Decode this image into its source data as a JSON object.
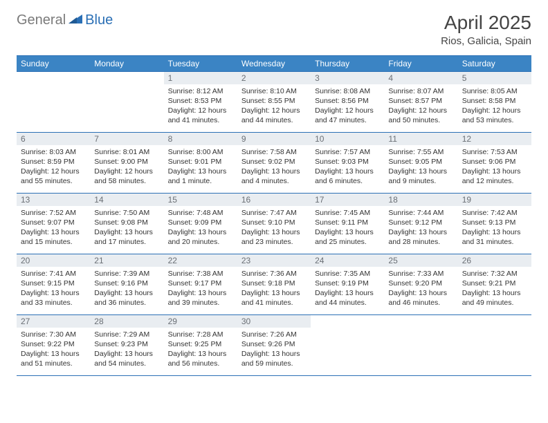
{
  "logo": {
    "gray": "General",
    "blue": "Blue"
  },
  "title": "April 2025",
  "subtitle": "Rios, Galicia, Spain",
  "colors": {
    "header_bg": "#3b84c4",
    "border": "#2a6fb5",
    "daynum_bg": "#e9edf1",
    "daynum_color": "#6a6f75",
    "text": "#333333",
    "logo_gray": "#7a7a7a",
    "logo_blue": "#2a6fb5"
  },
  "weekdays": [
    "Sunday",
    "Monday",
    "Tuesday",
    "Wednesday",
    "Thursday",
    "Friday",
    "Saturday"
  ],
  "weeks": [
    [
      null,
      null,
      {
        "n": "1",
        "sr": "8:12 AM",
        "ss": "8:53 PM",
        "dl": "12 hours and 41 minutes."
      },
      {
        "n": "2",
        "sr": "8:10 AM",
        "ss": "8:55 PM",
        "dl": "12 hours and 44 minutes."
      },
      {
        "n": "3",
        "sr": "8:08 AM",
        "ss": "8:56 PM",
        "dl": "12 hours and 47 minutes."
      },
      {
        "n": "4",
        "sr": "8:07 AM",
        "ss": "8:57 PM",
        "dl": "12 hours and 50 minutes."
      },
      {
        "n": "5",
        "sr": "8:05 AM",
        "ss": "8:58 PM",
        "dl": "12 hours and 53 minutes."
      }
    ],
    [
      {
        "n": "6",
        "sr": "8:03 AM",
        "ss": "8:59 PM",
        "dl": "12 hours and 55 minutes."
      },
      {
        "n": "7",
        "sr": "8:01 AM",
        "ss": "9:00 PM",
        "dl": "12 hours and 58 minutes."
      },
      {
        "n": "8",
        "sr": "8:00 AM",
        "ss": "9:01 PM",
        "dl": "13 hours and 1 minute."
      },
      {
        "n": "9",
        "sr": "7:58 AM",
        "ss": "9:02 PM",
        "dl": "13 hours and 4 minutes."
      },
      {
        "n": "10",
        "sr": "7:57 AM",
        "ss": "9:03 PM",
        "dl": "13 hours and 6 minutes."
      },
      {
        "n": "11",
        "sr": "7:55 AM",
        "ss": "9:05 PM",
        "dl": "13 hours and 9 minutes."
      },
      {
        "n": "12",
        "sr": "7:53 AM",
        "ss": "9:06 PM",
        "dl": "13 hours and 12 minutes."
      }
    ],
    [
      {
        "n": "13",
        "sr": "7:52 AM",
        "ss": "9:07 PM",
        "dl": "13 hours and 15 minutes."
      },
      {
        "n": "14",
        "sr": "7:50 AM",
        "ss": "9:08 PM",
        "dl": "13 hours and 17 minutes."
      },
      {
        "n": "15",
        "sr": "7:48 AM",
        "ss": "9:09 PM",
        "dl": "13 hours and 20 minutes."
      },
      {
        "n": "16",
        "sr": "7:47 AM",
        "ss": "9:10 PM",
        "dl": "13 hours and 23 minutes."
      },
      {
        "n": "17",
        "sr": "7:45 AM",
        "ss": "9:11 PM",
        "dl": "13 hours and 25 minutes."
      },
      {
        "n": "18",
        "sr": "7:44 AM",
        "ss": "9:12 PM",
        "dl": "13 hours and 28 minutes."
      },
      {
        "n": "19",
        "sr": "7:42 AM",
        "ss": "9:13 PM",
        "dl": "13 hours and 31 minutes."
      }
    ],
    [
      {
        "n": "20",
        "sr": "7:41 AM",
        "ss": "9:15 PM",
        "dl": "13 hours and 33 minutes."
      },
      {
        "n": "21",
        "sr": "7:39 AM",
        "ss": "9:16 PM",
        "dl": "13 hours and 36 minutes."
      },
      {
        "n": "22",
        "sr": "7:38 AM",
        "ss": "9:17 PM",
        "dl": "13 hours and 39 minutes."
      },
      {
        "n": "23",
        "sr": "7:36 AM",
        "ss": "9:18 PM",
        "dl": "13 hours and 41 minutes."
      },
      {
        "n": "24",
        "sr": "7:35 AM",
        "ss": "9:19 PM",
        "dl": "13 hours and 44 minutes."
      },
      {
        "n": "25",
        "sr": "7:33 AM",
        "ss": "9:20 PM",
        "dl": "13 hours and 46 minutes."
      },
      {
        "n": "26",
        "sr": "7:32 AM",
        "ss": "9:21 PM",
        "dl": "13 hours and 49 minutes."
      }
    ],
    [
      {
        "n": "27",
        "sr": "7:30 AM",
        "ss": "9:22 PM",
        "dl": "13 hours and 51 minutes."
      },
      {
        "n": "28",
        "sr": "7:29 AM",
        "ss": "9:23 PM",
        "dl": "13 hours and 54 minutes."
      },
      {
        "n": "29",
        "sr": "7:28 AM",
        "ss": "9:25 PM",
        "dl": "13 hours and 56 minutes."
      },
      {
        "n": "30",
        "sr": "7:26 AM",
        "ss": "9:26 PM",
        "dl": "13 hours and 59 minutes."
      },
      null,
      null,
      null
    ]
  ],
  "labels": {
    "sunrise": "Sunrise:",
    "sunset": "Sunset:",
    "daylight": "Daylight:"
  }
}
